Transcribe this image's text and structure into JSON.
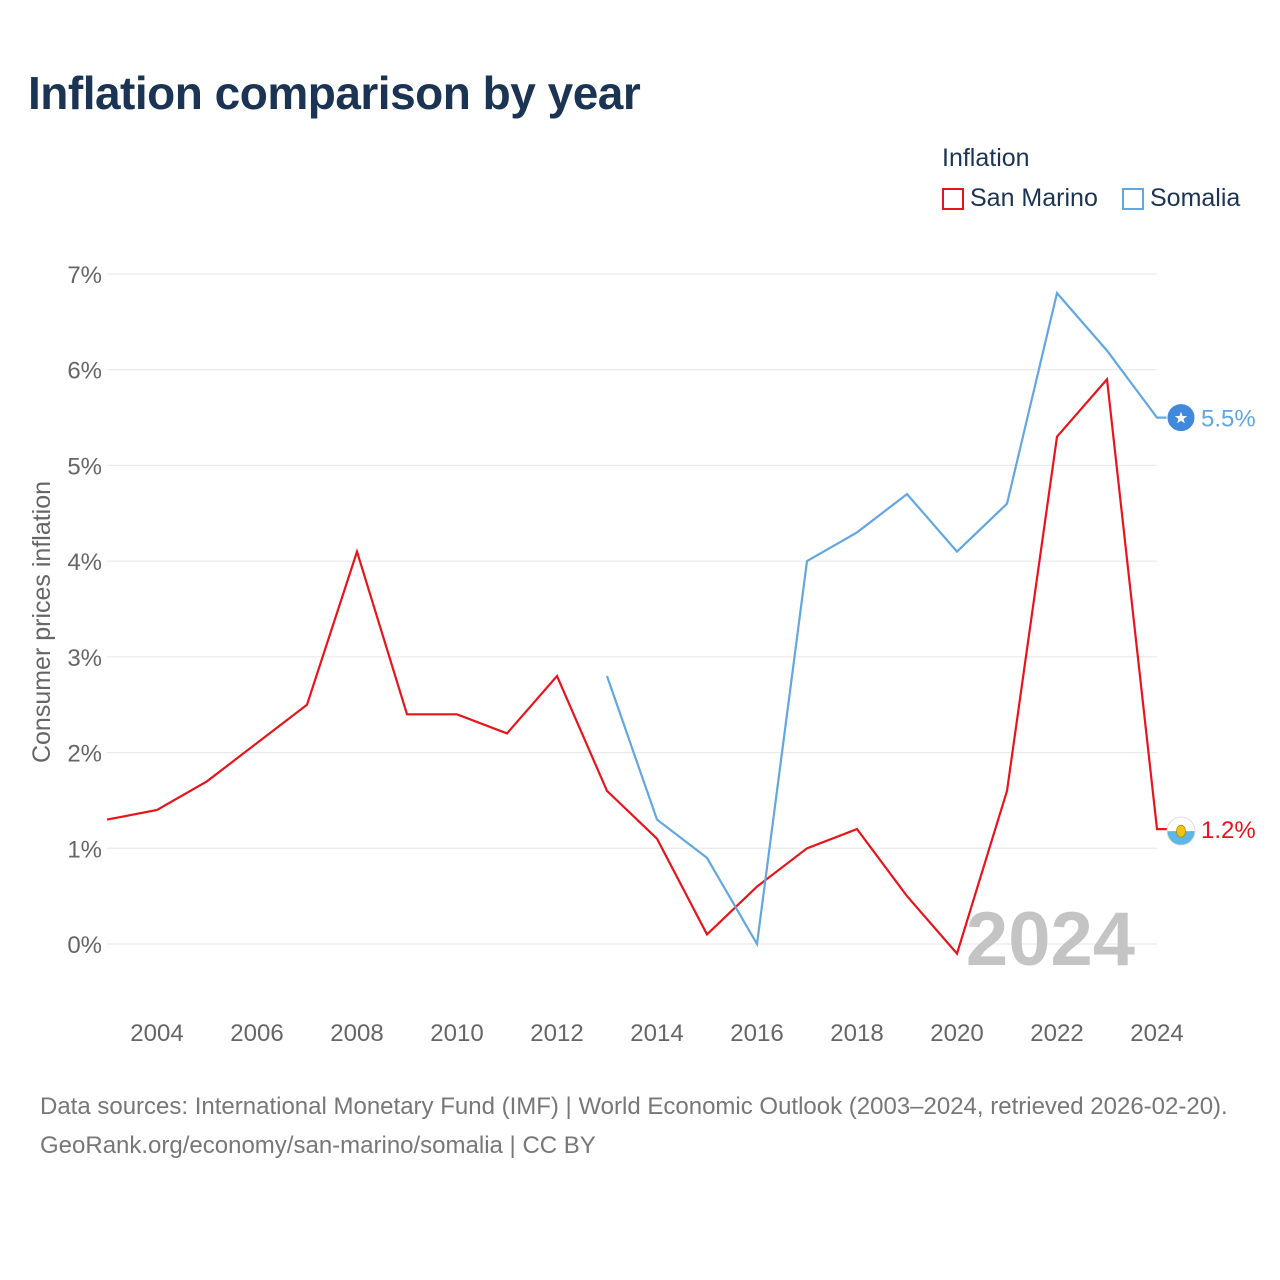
{
  "title": "Inflation comparison by year",
  "legend": {
    "title": "Inflation",
    "items": [
      {
        "label": "San Marino",
        "color": "#e8141b"
      },
      {
        "label": "Somalia",
        "color": "#62a6e2"
      }
    ]
  },
  "year_watermark": "2024",
  "footer": {
    "sources": "Data sources: International Monetary Fund (IMF) | World Economic Outlook (2003–2024, retrieved 2026-02-20).",
    "credit": "GeoRank.org/economy/san-marino/somalia | CC BY"
  },
  "chart_data": {
    "type": "line",
    "title": "Inflation comparison by year",
    "xlabel": "",
    "ylabel": "Consumer prices inflation",
    "xlim": [
      2003,
      2024
    ],
    "ylim": [
      -0.5,
      7
    ],
    "y_ticks": [
      0,
      1,
      2,
      3,
      4,
      5,
      6,
      7
    ],
    "y_tick_labels": [
      "0%",
      "1%",
      "2%",
      "3%",
      "4%",
      "5%",
      "6%",
      "7%"
    ],
    "x_ticks": [
      2004,
      2006,
      2008,
      2010,
      2012,
      2014,
      2016,
      2018,
      2020,
      2022,
      2024
    ],
    "x_tick_labels": [
      "2004",
      "2006",
      "2008",
      "2010",
      "2012",
      "2014",
      "2016",
      "2018",
      "2020",
      "2022",
      "2024"
    ],
    "grid": true,
    "legend_position": "top-right",
    "series": [
      {
        "name": "San Marino",
        "color": "#e8141b",
        "x": [
          2003,
          2004,
          2005,
          2006,
          2007,
          2008,
          2009,
          2010,
          2011,
          2012,
          2013,
          2014,
          2015,
          2016,
          2017,
          2018,
          2019,
          2020,
          2021,
          2022,
          2023,
          2024
        ],
        "values": [
          1.3,
          1.4,
          1.7,
          2.1,
          2.5,
          4.1,
          2.4,
          2.4,
          2.2,
          2.8,
          1.6,
          1.1,
          0.1,
          0.6,
          1.0,
          1.2,
          0.5,
          -0.1,
          1.6,
          5.3,
          5.9,
          1.2
        ],
        "end_label": "1.2%",
        "end_icon": "san-marino-flag-icon"
      },
      {
        "name": "Somalia",
        "color": "#62a6e2",
        "x": [
          2013,
          2014,
          2015,
          2016,
          2017,
          2018,
          2019,
          2020,
          2021,
          2022,
          2023,
          2024
        ],
        "values": [
          2.8,
          1.3,
          0.9,
          0.0,
          4.0,
          4.3,
          4.7,
          4.1,
          4.6,
          6.8,
          6.2,
          5.5
        ],
        "end_label": "5.5%",
        "end_icon": "somalia-flag-icon"
      }
    ]
  }
}
